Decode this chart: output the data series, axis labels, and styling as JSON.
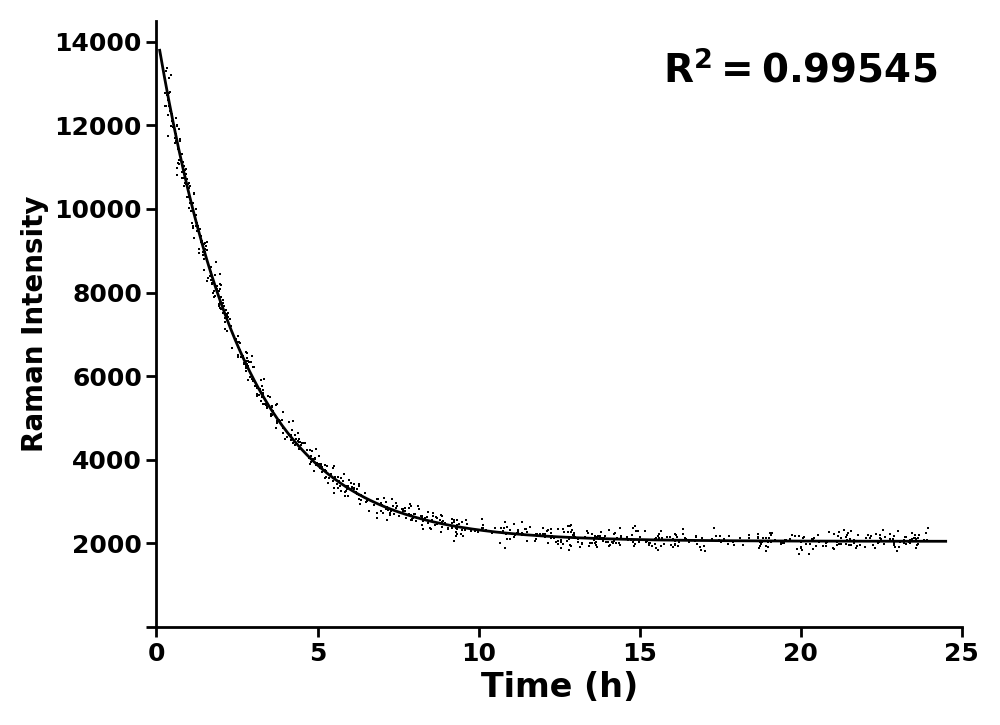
{
  "xlabel": "Time (h)",
  "ylabel": "Raman Intensity",
  "xlim": [
    0,
    25
  ],
  "ylim": [
    0,
    14500
  ],
  "xticks": [
    0,
    5,
    10,
    15,
    20,
    25
  ],
  "yticks": [
    0,
    2000,
    4000,
    6000,
    8000,
    10000,
    12000,
    14000
  ],
  "data_color": "#000000",
  "curve_color": "#000000",
  "background_color": "#ffffff",
  "fit_A": 12200,
  "fit_k": 0.38,
  "fit_C": 2050,
  "noise_seed": 42,
  "t_start": 0.25,
  "t_end": 24.0,
  "xlabel_fontsize": 24,
  "ylabel_fontsize": 20,
  "tick_fontsize": 18,
  "annotation_fontsize": 28
}
